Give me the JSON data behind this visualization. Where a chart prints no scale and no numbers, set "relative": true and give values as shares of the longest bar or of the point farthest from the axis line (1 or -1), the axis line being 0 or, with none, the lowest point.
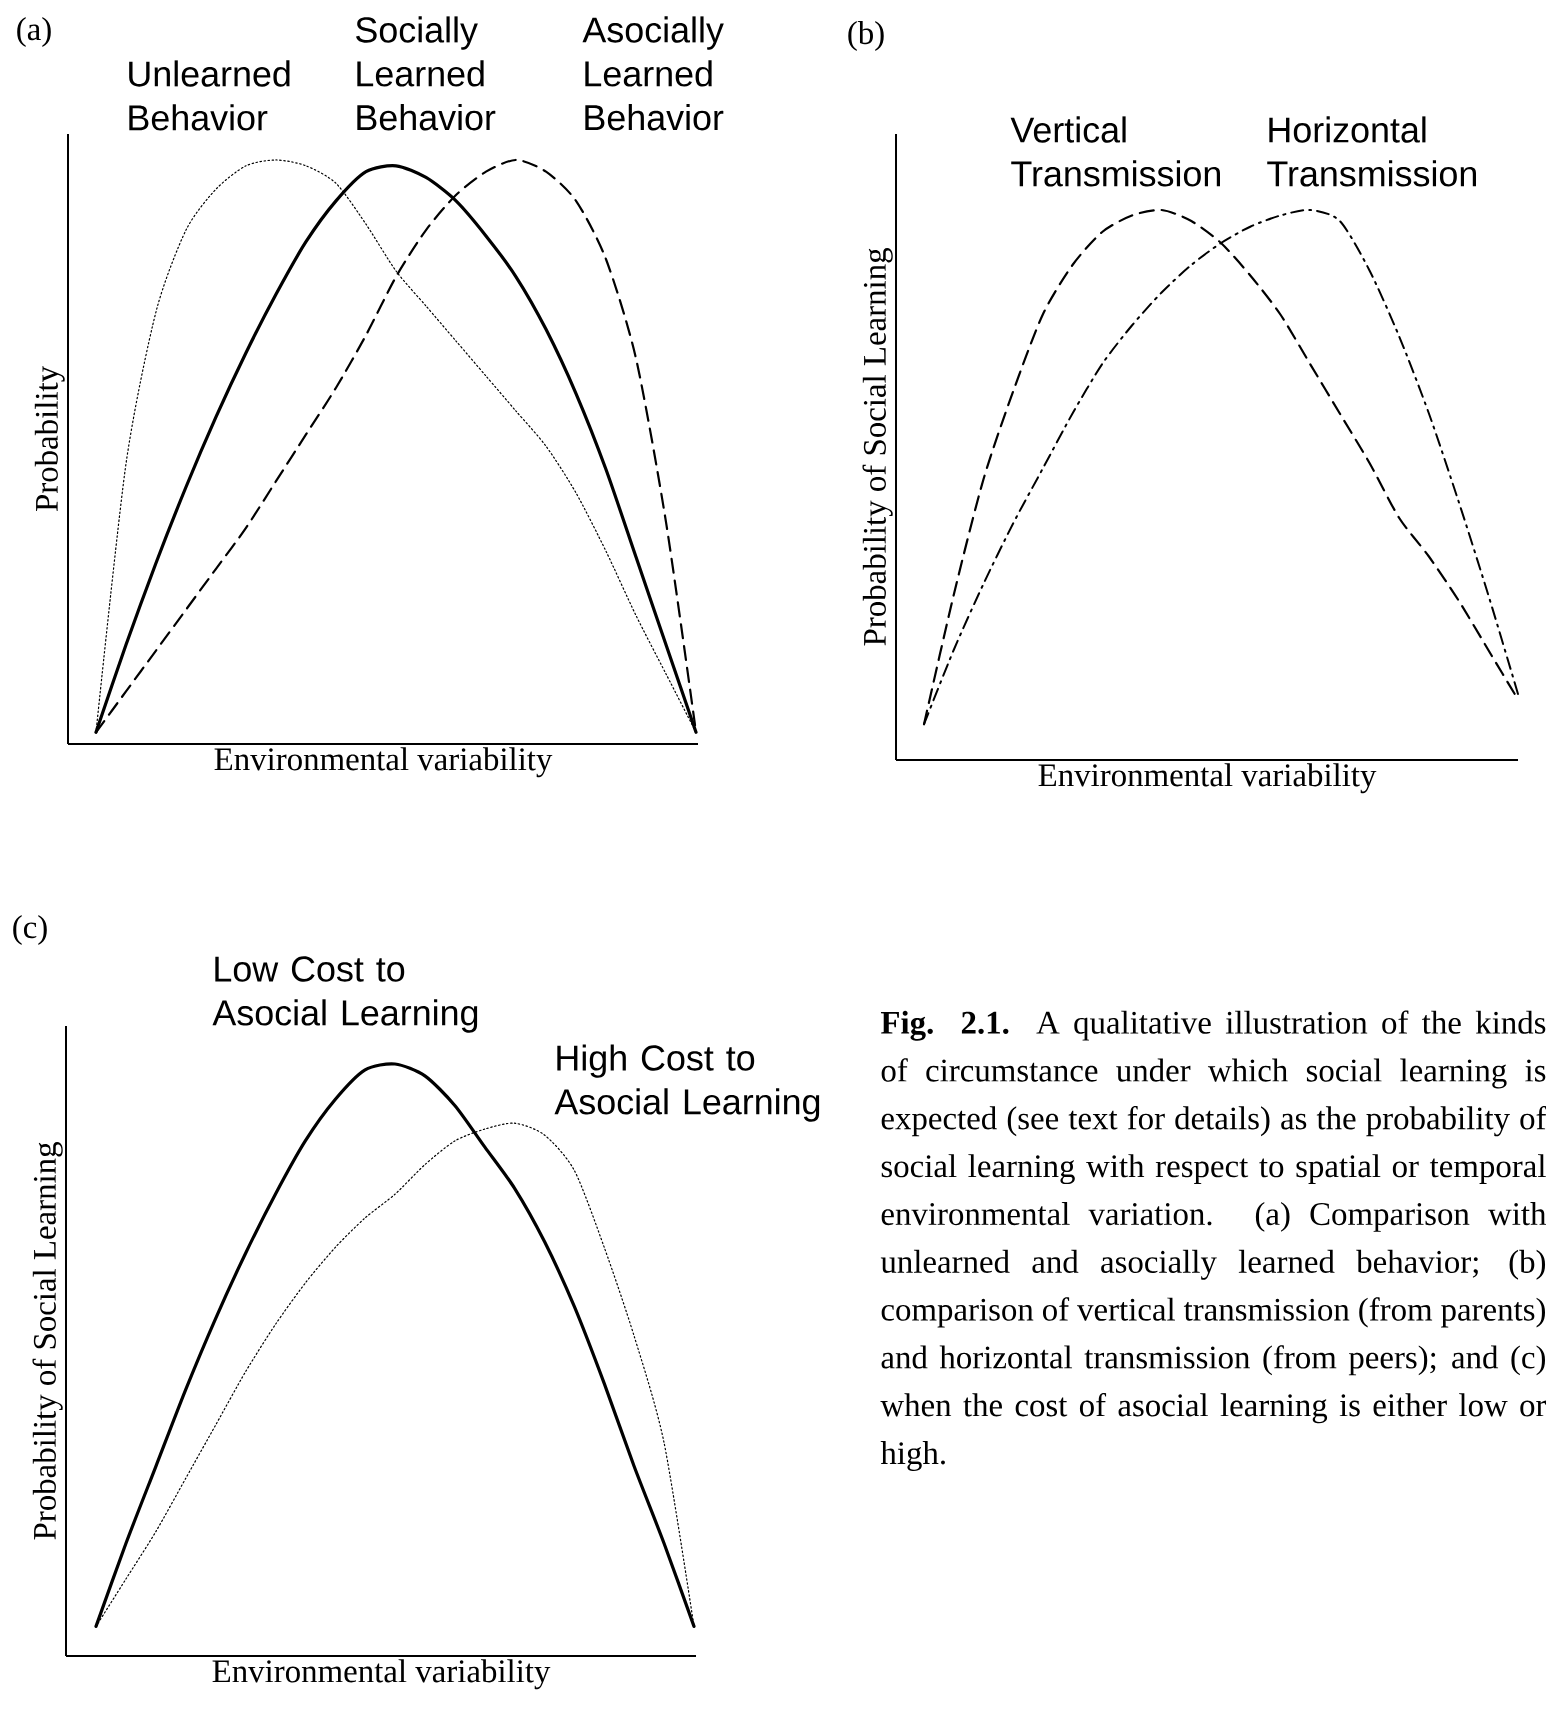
{
  "chart_data": [
    {
      "type": "line",
      "title": "(a)",
      "xlabel": "Environmental variability",
      "ylabel": "Probability",
      "relative": true,
      "categories": [
        null,
        null,
        null,
        null,
        null,
        null,
        null,
        null,
        null,
        null,
        null,
        null,
        null,
        null,
        null,
        null,
        null,
        null,
        null,
        null,
        null
      ],
      "series": [
        {
          "name": "Unlearned Behavior",
          "color": "#000000",
          "line_style": "dotted",
          "values": [
            0.02,
            0.48,
            0.74,
            0.88,
            0.95,
            0.99,
            1.0,
            0.99,
            0.96,
            0.89,
            0.81,
            0.75,
            0.69,
            0.63,
            0.57,
            0.51,
            0.43,
            0.33,
            0.22,
            0.12,
            0.02
          ]
        },
        {
          "name": "Socially Learned Behavior",
          "color": "#000000",
          "line_style": "solid",
          "values": [
            0.02,
            0.17,
            0.31,
            0.44,
            0.56,
            0.67,
            0.77,
            0.86,
            0.93,
            0.98,
            0.99,
            0.97,
            0.93,
            0.87,
            0.8,
            0.71,
            0.6,
            0.47,
            0.32,
            0.17,
            0.02
          ]
        },
        {
          "name": "Asocially Learned Behavior",
          "color": "#000000",
          "line_style": "dashed",
          "values": [
            0.02,
            0.09,
            0.16,
            0.23,
            0.3,
            0.37,
            0.45,
            0.53,
            0.61,
            0.7,
            0.8,
            0.88,
            0.94,
            0.98,
            1.0,
            0.98,
            0.93,
            0.83,
            0.66,
            0.38,
            0.02
          ]
        }
      ]
    },
    {
      "type": "line",
      "title": "(b)",
      "xlabel": "Environmental variability",
      "ylabel": "Probability of Social Learning",
      "relative": true,
      "categories": [
        null,
        null,
        null,
        null,
        null,
        null,
        null,
        null,
        null,
        null,
        null,
        null,
        null,
        null,
        null,
        null,
        null,
        null,
        null,
        null,
        null
      ],
      "series": [
        {
          "name": "Vertical Transmission",
          "color": "#000000",
          "line_style": "dashed",
          "values": [
            0.065,
            0.3,
            0.51,
            0.67,
            0.81,
            0.9,
            0.96,
            0.99,
            1.0,
            0.98,
            0.94,
            0.88,
            0.81,
            0.72,
            0.63,
            0.54,
            0.44,
            0.37,
            0.29,
            0.2,
            0.11
          ]
        },
        {
          "name": "Horizontal Transmission",
          "color": "#000000",
          "line_style": "dashdot",
          "values": [
            0.065,
            0.2,
            0.32,
            0.43,
            0.53,
            0.63,
            0.72,
            0.79,
            0.85,
            0.9,
            0.94,
            0.97,
            0.99,
            1.0,
            0.98,
            0.89,
            0.77,
            0.63,
            0.47,
            0.3,
            0.12
          ]
        }
      ]
    },
    {
      "type": "line",
      "title": "(c)",
      "xlabel": "Environmental variability",
      "ylabel": "Probability of Social Learning",
      "relative": true,
      "categories": [
        null,
        null,
        null,
        null,
        null,
        null,
        null,
        null,
        null,
        null,
        null,
        null,
        null,
        null,
        null,
        null,
        null,
        null,
        null,
        null,
        null
      ],
      "series": [
        {
          "name": "Low Cost to Asocial Learning",
          "color": "#000000",
          "line_style": "solid",
          "values": [
            0.05,
            0.19,
            0.32,
            0.45,
            0.57,
            0.68,
            0.78,
            0.87,
            0.94,
            0.99,
            1.0,
            0.98,
            0.93,
            0.86,
            0.79,
            0.7,
            0.59,
            0.46,
            0.32,
            0.19,
            0.05
          ]
        },
        {
          "name": "High Cost to Asocial Learning",
          "color": "#000000",
          "line_style": "dotted",
          "values": [
            0.05,
            0.13,
            0.21,
            0.3,
            0.39,
            0.48,
            0.56,
            0.63,
            0.69,
            0.74,
            0.78,
            0.83,
            0.87,
            0.89,
            0.9,
            0.88,
            0.82,
            0.69,
            0.54,
            0.36,
            0.05
          ]
        }
      ]
    },
    {
      "type": "other",
      "annotations": [
        "**Fig. 2.1.** A qualitative illustration of the kinds of circumstance under which social learning is expected (see text for details) as the probability of social learning with respect to spatial or temporal environmental variation. (a) Comparison with unlearned and asocially learned behavior; (b) comparison of vertical transmission (from parents) and horizontal transmission (from peers); and (c) when the cost of asocial learning is either low or high."
      ]
    }
  ]
}
